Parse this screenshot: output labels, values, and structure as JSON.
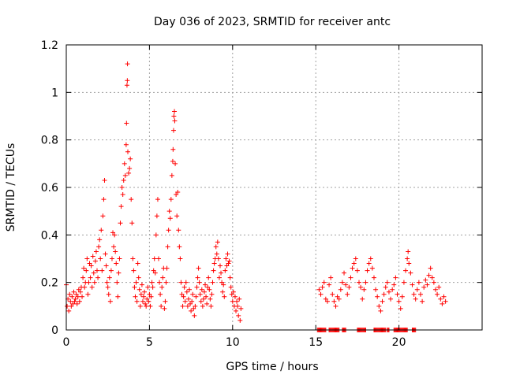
{
  "chart_data": {
    "type": "scatter",
    "title": "Day 036 of 2023, SRMTID for receiver antc",
    "xlabel": "GPS time / hours",
    "ylabel": "SRMTID / TECUs",
    "xlim": [
      0,
      25
    ],
    "ylim": [
      0,
      1.2
    ],
    "xticks": [
      0,
      5,
      10,
      15,
      20
    ],
    "xtick_labels": [
      "0",
      "5",
      "10",
      "15",
      "20"
    ],
    "yticks": [
      0,
      0.2,
      0.4,
      0.6,
      0.8,
      1.0,
      1.2
    ],
    "ytick_labels": [
      "0",
      "0.2",
      "0.4",
      "0.6",
      "0.8",
      "1",
      "1.2"
    ],
    "grid": true,
    "marker": "+",
    "color": "#ff0000",
    "series": [
      {
        "name": "SRMTID",
        "points": [
          [
            0.0,
            0.19
          ],
          [
            0.05,
            0.1
          ],
          [
            0.1,
            0.13
          ],
          [
            0.15,
            0.08
          ],
          [
            0.2,
            0.15
          ],
          [
            0.25,
            0.12
          ],
          [
            0.3,
            0.1
          ],
          [
            0.35,
            0.14
          ],
          [
            0.4,
            0.11
          ],
          [
            0.45,
            0.16
          ],
          [
            0.5,
            0.12
          ],
          [
            0.55,
            0.13
          ],
          [
            0.6,
            0.15
          ],
          [
            0.65,
            0.11
          ],
          [
            0.7,
            0.14
          ],
          [
            0.75,
            0.17
          ],
          [
            0.8,
            0.12
          ],
          [
            0.85,
            0.16
          ],
          [
            0.9,
            0.18
          ],
          [
            0.95,
            0.14
          ],
          [
            1.0,
            0.22
          ],
          [
            1.05,
            0.26
          ],
          [
            1.1,
            0.18
          ],
          [
            1.15,
            0.2
          ],
          [
            1.2,
            0.25
          ],
          [
            1.25,
            0.3
          ],
          [
            1.3,
            0.15
          ],
          [
            1.35,
            0.2
          ],
          [
            1.4,
            0.28
          ],
          [
            1.45,
            0.22
          ],
          [
            1.5,
            0.27
          ],
          [
            1.55,
            0.18
          ],
          [
            1.6,
            0.31
          ],
          [
            1.65,
            0.24
          ],
          [
            1.7,
            0.2
          ],
          [
            1.75,
            0.29
          ],
          [
            1.8,
            0.33
          ],
          [
            1.85,
            0.25
          ],
          [
            1.9,
            0.22
          ],
          [
            1.95,
            0.35
          ],
          [
            2.0,
            0.38
          ],
          [
            2.05,
            0.3
          ],
          [
            2.1,
            0.42
          ],
          [
            2.15,
            0.25
          ],
          [
            2.2,
            0.48
          ],
          [
            2.25,
            0.55
          ],
          [
            2.3,
            0.63
          ],
          [
            2.35,
            0.32
          ],
          [
            2.4,
            0.27
          ],
          [
            2.45,
            0.2
          ],
          [
            2.5,
            0.18
          ],
          [
            2.55,
            0.15
          ],
          [
            2.6,
            0.22
          ],
          [
            2.65,
            0.12
          ],
          [
            2.7,
            0.25
          ],
          [
            2.75,
            0.3
          ],
          [
            2.8,
            0.41
          ],
          [
            2.85,
            0.35
          ],
          [
            2.9,
            0.4
          ],
          [
            2.95,
            0.33
          ],
          [
            3.0,
            0.28
          ],
          [
            3.05,
            0.2
          ],
          [
            3.1,
            0.14
          ],
          [
            3.15,
            0.24
          ],
          [
            3.2,
            0.3
          ],
          [
            3.25,
            0.45
          ],
          [
            3.3,
            0.52
          ],
          [
            3.35,
            0.6
          ],
          [
            3.4,
            0.57
          ],
          [
            3.45,
            0.63
          ],
          [
            3.5,
            0.7
          ],
          [
            3.55,
            0.65
          ],
          [
            3.6,
            0.78
          ],
          [
            3.62,
            0.87
          ],
          [
            3.65,
            1.03
          ],
          [
            3.67,
            1.05
          ],
          [
            3.68,
            1.12
          ],
          [
            3.7,
            0.75
          ],
          [
            3.75,
            0.66
          ],
          [
            3.8,
            0.68
          ],
          [
            3.85,
            0.72
          ],
          [
            3.9,
            0.55
          ],
          [
            3.95,
            0.45
          ],
          [
            4.0,
            0.3
          ],
          [
            4.05,
            0.25
          ],
          [
            4.1,
            0.18
          ],
          [
            4.15,
            0.14
          ],
          [
            4.2,
            0.2
          ],
          [
            4.25,
            0.12
          ],
          [
            4.3,
            0.28
          ],
          [
            4.35,
            0.22
          ],
          [
            4.4,
            0.17
          ],
          [
            4.45,
            0.1
          ],
          [
            4.5,
            0.15
          ],
          [
            4.55,
            0.19
          ],
          [
            4.6,
            0.12
          ],
          [
            4.65,
            0.14
          ],
          [
            4.7,
            0.16
          ],
          [
            4.75,
            0.11
          ],
          [
            4.8,
            0.1
          ],
          [
            4.85,
            0.13
          ],
          [
            4.9,
            0.18
          ],
          [
            4.95,
            0.12
          ],
          [
            5.0,
            0.15
          ],
          [
            5.05,
            0.1
          ],
          [
            5.1,
            0.14
          ],
          [
            5.15,
            0.2
          ],
          [
            5.2,
            0.18
          ],
          [
            5.25,
            0.25
          ],
          [
            5.3,
            0.3
          ],
          [
            5.35,
            0.24
          ],
          [
            5.4,
            0.4
          ],
          [
            5.45,
            0.48
          ],
          [
            5.5,
            0.55
          ],
          [
            5.55,
            0.3
          ],
          [
            5.6,
            0.2
          ],
          [
            5.65,
            0.15
          ],
          [
            5.7,
            0.1
          ],
          [
            5.75,
            0.18
          ],
          [
            5.8,
            0.22
          ],
          [
            5.85,
            0.26
          ],
          [
            5.9,
            0.09
          ],
          [
            5.95,
            0.12
          ],
          [
            6.0,
            0.2
          ],
          [
            6.05,
            0.26
          ],
          [
            6.1,
            0.35
          ],
          [
            6.15,
            0.42
          ],
          [
            6.2,
            0.5
          ],
          [
            6.25,
            0.47
          ],
          [
            6.3,
            0.55
          ],
          [
            6.35,
            0.65
          ],
          [
            6.4,
            0.71
          ],
          [
            6.42,
            0.76
          ],
          [
            6.45,
            0.84
          ],
          [
            6.47,
            0.9
          ],
          [
            6.5,
            0.92
          ],
          [
            6.52,
            0.88
          ],
          [
            6.55,
            0.7
          ],
          [
            6.6,
            0.57
          ],
          [
            6.65,
            0.48
          ],
          [
            6.7,
            0.58
          ],
          [
            6.75,
            0.42
          ],
          [
            6.8,
            0.35
          ],
          [
            6.85,
            0.3
          ],
          [
            6.9,
            0.2
          ],
          [
            6.95,
            0.15
          ],
          [
            7.0,
            0.1
          ],
          [
            7.05,
            0.14
          ],
          [
            7.1,
            0.18
          ],
          [
            7.15,
            0.12
          ],
          [
            7.2,
            0.2
          ],
          [
            7.25,
            0.16
          ],
          [
            7.3,
            0.1
          ],
          [
            7.35,
            0.13
          ],
          [
            7.4,
            0.17
          ],
          [
            7.45,
            0.11
          ],
          [
            7.5,
            0.08
          ],
          [
            7.55,
            0.12
          ],
          [
            7.6,
            0.15
          ],
          [
            7.65,
            0.09
          ],
          [
            7.7,
            0.06
          ],
          [
            7.75,
            0.1
          ],
          [
            7.8,
            0.14
          ],
          [
            7.85,
            0.18
          ],
          [
            7.9,
            0.22
          ],
          [
            7.95,
            0.26
          ],
          [
            8.0,
            0.2
          ],
          [
            8.05,
            0.15
          ],
          [
            8.1,
            0.12
          ],
          [
            8.15,
            0.17
          ],
          [
            8.2,
            0.1
          ],
          [
            8.25,
            0.13
          ],
          [
            8.3,
            0.16
          ],
          [
            8.35,
            0.19
          ],
          [
            8.4,
            0.14
          ],
          [
            8.45,
            0.11
          ],
          [
            8.5,
            0.18
          ],
          [
            8.55,
            0.22
          ],
          [
            8.6,
            0.17
          ],
          [
            8.65,
            0.13
          ],
          [
            8.7,
            0.1
          ],
          [
            8.75,
            0.15
          ],
          [
            8.8,
            0.2
          ],
          [
            8.85,
            0.25
          ],
          [
            8.9,
            0.28
          ],
          [
            8.95,
            0.3
          ],
          [
            9.0,
            0.35
          ],
          [
            9.05,
            0.32
          ],
          [
            9.1,
            0.37
          ],
          [
            9.15,
            0.3
          ],
          [
            9.2,
            0.22
          ],
          [
            9.25,
            0.27
          ],
          [
            9.3,
            0.24
          ],
          [
            9.35,
            0.2
          ],
          [
            9.4,
            0.16
          ],
          [
            9.45,
            0.19
          ],
          [
            9.5,
            0.14
          ],
          [
            9.55,
            0.25
          ],
          [
            9.6,
            0.3
          ],
          [
            9.65,
            0.27
          ],
          [
            9.7,
            0.32
          ],
          [
            9.75,
            0.28
          ],
          [
            9.8,
            0.29
          ],
          [
            9.85,
            0.22
          ],
          [
            9.9,
            0.18
          ],
          [
            9.95,
            0.15
          ],
          [
            10.0,
            0.12
          ],
          [
            10.05,
            0.16
          ],
          [
            10.1,
            0.1
          ],
          [
            10.15,
            0.14
          ],
          [
            10.2,
            0.08
          ],
          [
            10.25,
            0.12
          ],
          [
            10.3,
            0.1
          ],
          [
            10.35,
            0.06
          ],
          [
            10.4,
            0.13
          ],
          [
            10.45,
            0.04
          ],
          [
            10.5,
            0.09
          ],
          [
            15.2,
            0.17
          ],
          [
            15.3,
            0.15
          ],
          [
            15.4,
            0.18
          ],
          [
            15.5,
            0.2
          ],
          [
            15.6,
            0.13
          ],
          [
            15.7,
            0.12
          ],
          [
            15.8,
            0.19
          ],
          [
            15.9,
            0.22
          ],
          [
            16.0,
            0.15
          ],
          [
            16.1,
            0.12
          ],
          [
            16.2,
            0.1
          ],
          [
            16.3,
            0.14
          ],
          [
            16.4,
            0.13
          ],
          [
            16.5,
            0.17
          ],
          [
            16.6,
            0.2
          ],
          [
            16.7,
            0.24
          ],
          [
            16.8,
            0.19
          ],
          [
            16.9,
            0.15
          ],
          [
            17.0,
            0.18
          ],
          [
            17.1,
            0.22
          ],
          [
            17.2,
            0.26
          ],
          [
            17.3,
            0.28
          ],
          [
            17.4,
            0.3
          ],
          [
            17.5,
            0.25
          ],
          [
            17.6,
            0.2
          ],
          [
            17.7,
            0.18
          ],
          [
            17.8,
            0.13
          ],
          [
            17.9,
            0.17
          ],
          [
            18.0,
            0.2
          ],
          [
            18.1,
            0.25
          ],
          [
            18.2,
            0.28
          ],
          [
            18.3,
            0.3
          ],
          [
            18.4,
            0.26
          ],
          [
            18.5,
            0.22
          ],
          [
            18.6,
            0.17
          ],
          [
            18.7,
            0.14
          ],
          [
            18.8,
            0.1
          ],
          [
            18.9,
            0.08
          ],
          [
            19.0,
            0.12
          ],
          [
            19.1,
            0.15
          ],
          [
            19.2,
            0.18
          ],
          [
            19.3,
            0.2
          ],
          [
            19.4,
            0.16
          ],
          [
            19.5,
            0.13
          ],
          [
            19.6,
            0.17
          ],
          [
            19.7,
            0.19
          ],
          [
            19.8,
            0.22
          ],
          [
            19.9,
            0.15
          ],
          [
            20.0,
            0.12
          ],
          [
            20.1,
            0.09
          ],
          [
            20.2,
            0.14
          ],
          [
            20.3,
            0.2
          ],
          [
            20.4,
            0.25
          ],
          [
            20.5,
            0.3
          ],
          [
            20.55,
            0.33
          ],
          [
            20.6,
            0.28
          ],
          [
            20.7,
            0.24
          ],
          [
            20.8,
            0.19
          ],
          [
            20.9,
            0.15
          ],
          [
            21.0,
            0.13
          ],
          [
            21.1,
            0.17
          ],
          [
            21.2,
            0.2
          ],
          [
            21.3,
            0.15
          ],
          [
            21.4,
            0.12
          ],
          [
            21.5,
            0.18
          ],
          [
            21.6,
            0.21
          ],
          [
            21.7,
            0.19
          ],
          [
            21.8,
            0.23
          ],
          [
            21.9,
            0.26
          ],
          [
            22.0,
            0.22
          ],
          [
            22.1,
            0.2
          ],
          [
            22.2,
            0.17
          ],
          [
            22.3,
            0.15
          ],
          [
            22.4,
            0.18
          ],
          [
            22.5,
            0.13
          ],
          [
            22.6,
            0.11
          ],
          [
            22.7,
            0.14
          ],
          [
            22.8,
            0.12
          ]
        ],
        "zero_ranges": [
          [
            15.1,
            15.6
          ],
          [
            15.8,
            16.4
          ],
          [
            16.6,
            16.8
          ],
          [
            17.5,
            18.0
          ],
          [
            18.5,
            19.2
          ],
          [
            19.3,
            19.4
          ],
          [
            19.7,
            20.5
          ],
          [
            20.8,
            21.0
          ]
        ]
      }
    ]
  }
}
